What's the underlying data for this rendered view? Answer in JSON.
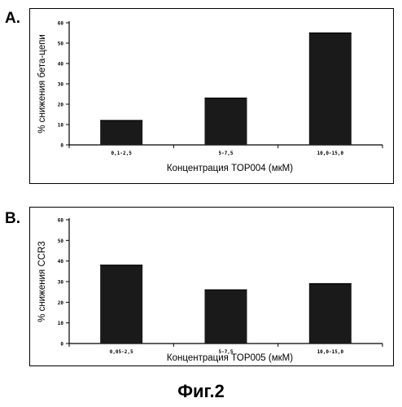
{
  "figure": {
    "caption": "Фиг.2"
  },
  "chart_data": [
    {
      "type": "bar",
      "panel_label": "A.",
      "categories": [
        "0,1-2,5",
        "5-7,5",
        "10,0-15,0"
      ],
      "values": [
        12,
        23,
        55
      ],
      "title": "",
      "xlabel": "Концентрация TOP004 (мкМ)",
      "ylabel": "% снижения бета-цепи",
      "ylim": [
        0,
        60
      ],
      "yticks": [
        0,
        10,
        20,
        30,
        40,
        50,
        60
      ],
      "grid": false,
      "bar_color": "#1a1a1a"
    },
    {
      "type": "bar",
      "panel_label": "B.",
      "categories": [
        "0,05-2,5",
        "5-7,5",
        "10,0-15,0"
      ],
      "values": [
        38,
        26,
        29
      ],
      "title": "",
      "xlabel": "Концентрация TOP005 (мкМ)",
      "ylabel": "% снижения CCR3",
      "ylim": [
        0,
        60
      ],
      "yticks": [
        0,
        10,
        20,
        30,
        40,
        50,
        60
      ],
      "grid": false,
      "bar_color": "#1a1a1a"
    }
  ]
}
